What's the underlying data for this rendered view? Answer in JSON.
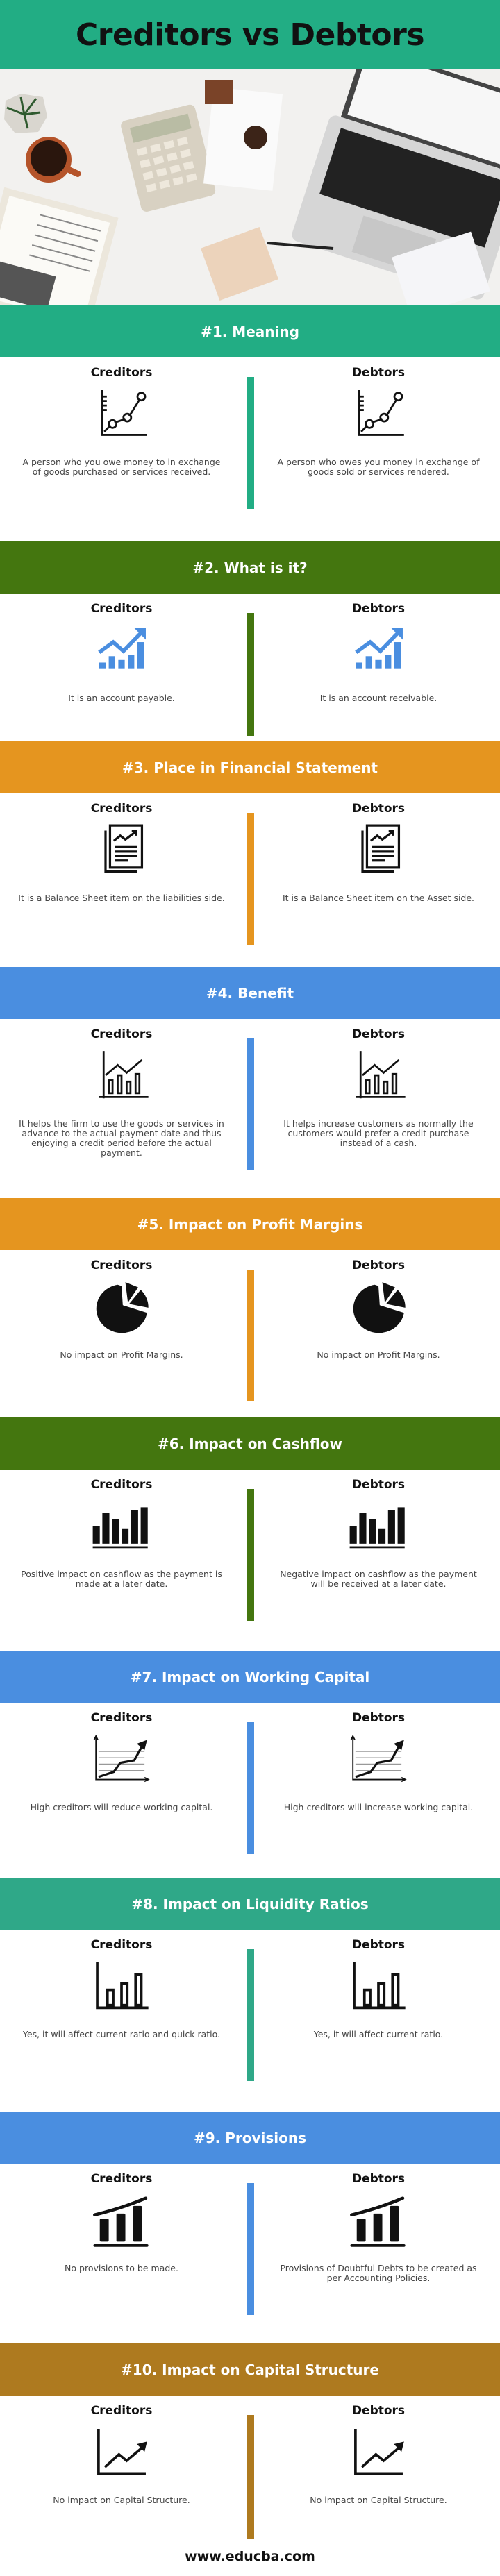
{
  "title": "Creditors vs Debtors",
  "title_color": "#22ad84",
  "footer": "www.educba.com",
  "sections": [
    {
      "heading": "#1. Meaning",
      "color": "#22ad84",
      "icon": "line-chart-dots-icon",
      "creditors": {
        "label": "Creditors",
        "text": "A person who you owe money to in exchange of goods purchased or services received."
      },
      "debtors": {
        "label": "Debtors",
        "text": "A person who owes you money in exchange of goods sold or services rendered."
      }
    },
    {
      "heading": "#2. What is it?",
      "color": "#44760f",
      "icon": "growth-chart-icon",
      "creditors": {
        "label": "Creditors",
        "text": "It is an account payable."
      },
      "debtors": {
        "label": "Debtors",
        "text": "It is an account receivable."
      }
    },
    {
      "heading": "#3. Place in Financial Statement",
      "color": "#e5951f",
      "icon": "report-document-icon",
      "creditors": {
        "label": "Creditors",
        "text": "It is a Balance Sheet item on the liabilities side."
      },
      "debtors": {
        "label": "Debtors",
        "text": "It is a Balance Sheet item on the Asset side."
      }
    },
    {
      "heading": "#4. Benefit",
      "color": "#4a8ee0",
      "icon": "bar-line-chart-icon",
      "creditors": {
        "label": "Creditors",
        "text": "It helps the firm to use the goods or services in advance to the actual payment date and thus enjoying a credit period before the actual payment."
      },
      "debtors": {
        "label": "Debtors",
        "text": "It helps increase customers as normally the customers would prefer a credit purchase instead of a cash."
      }
    },
    {
      "heading": "#5. Impact on Profit Margins",
      "color": "#e5951f",
      "icon": "pie-chart-icon",
      "creditors": {
        "label": "Creditors",
        "text": "No impact on Profit Margins."
      },
      "debtors": {
        "label": "Debtors",
        "text": "No impact on Profit Margins."
      }
    },
    {
      "heading": "#6. Impact on Cashflow",
      "color": "#44760f",
      "icon": "bar-chart-icon",
      "creditors": {
        "label": "Creditors",
        "text": "Positive impact on cashflow as the payment is made at a later date."
      },
      "debtors": {
        "label": "Debtors",
        "text": "Negative impact on cashflow as the payment will be received at a later date."
      }
    },
    {
      "heading": "#7. Impact on Working Capital",
      "color": "#4a8ee0",
      "icon": "trend-grid-chart-icon",
      "creditors": {
        "label": "Creditors",
        "text": "High creditors will reduce working capital."
      },
      "debtors": {
        "label": "Debtors",
        "text": "High creditors will increase working capital."
      }
    },
    {
      "heading": "#8. Impact on Liquidity Ratios",
      "color": "#2fa888",
      "icon": "bar-chart-outline-icon",
      "creditors": {
        "label": "Creditors",
        "text": "Yes, it will affect current ratio and quick ratio."
      },
      "debtors": {
        "label": "Debtors",
        "text": "Yes, it will affect current ratio."
      }
    },
    {
      "heading": "#9. Provisions",
      "color": "#4a8ee0",
      "icon": "growth-bars-icon",
      "creditors": {
        "label": "Creditors",
        "text": "No provisions to be made."
      },
      "debtors": {
        "label": "Debtors",
        "text": "Provisions of Doubtful Debts to be created as per Accounting Policies."
      }
    },
    {
      "heading": "#10. Impact on Capital Structure",
      "color": "#ae7a1f",
      "icon": "trend-arrow-icon",
      "creditors": {
        "label": "Creditors",
        "text": "No impact on Capital Structure."
      },
      "debtors": {
        "label": "Debtors",
        "text": "No impact on Capital Structure."
      }
    }
  ]
}
